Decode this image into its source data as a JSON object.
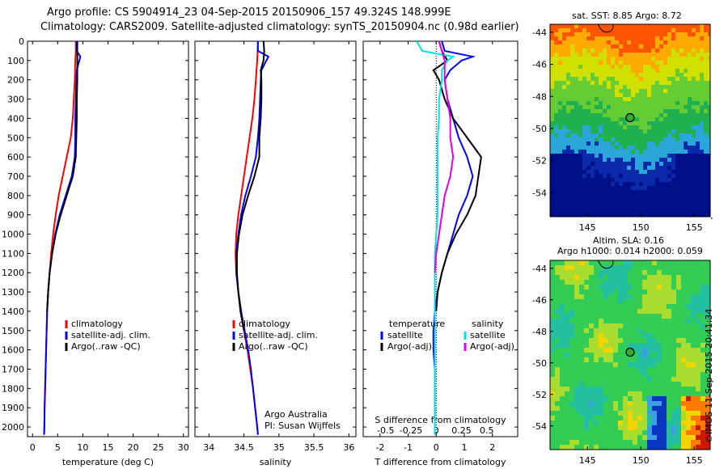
{
  "header": {
    "line1": "Argo profile: CS 5904914_23 04-Sep-2015 20150906_157 49.324S 148.999E",
    "line2": "Climatology: CARS2009. Satellite-adjusted climatology: synTS_20150904.nc (0.98d earlier)"
  },
  "credit": "©IMOS 11-Sep-2015 20:41:34",
  "colors": {
    "climatology": "#ff0000",
    "satellite": "#0000ff",
    "argo": "#000000",
    "satellite_salinity": "#00e5e5",
    "argo_salinity": "#e500e5"
  },
  "chart_data": [
    {
      "id": "temperature",
      "type": "line",
      "xlabel": "temperature (deg C)",
      "ylabel": "",
      "xlim": [
        -1,
        31
      ],
      "ylim": [
        2050,
        0
      ],
      "xticks": [
        0,
        5,
        10,
        15,
        20,
        25,
        30
      ],
      "yticks": [
        0,
        100,
        200,
        300,
        400,
        500,
        600,
        700,
        800,
        900,
        1000,
        1100,
        1200,
        1300,
        1400,
        1500,
        1600,
        1700,
        1800,
        1900,
        2000
      ],
      "legend": [
        "climatology",
        "satellite-adj. clim.",
        "Argo(..raw -QC)"
      ],
      "legend_position": "lower-right",
      "series": [
        {
          "name": "climatology",
          "color": "#ff0000",
          "depth": [
            0,
            50,
            100,
            200,
            300,
            400,
            500,
            600,
            700,
            800,
            900,
            1000,
            1100,
            1200,
            1300,
            1400,
            1500,
            1600,
            1700,
            1800,
            1900,
            2000,
            2040
          ],
          "values": [
            8.6,
            8.6,
            8.5,
            8.4,
            8.2,
            8.0,
            7.6,
            6.8,
            6.0,
            5.2,
            4.6,
            4.1,
            3.7,
            3.4,
            3.1,
            2.9,
            2.8,
            2.7,
            2.6,
            2.5,
            2.4,
            2.35,
            2.3
          ]
        },
        {
          "name": "satellite-adj. clim.",
          "color": "#0000ff",
          "depth": [
            0,
            50,
            80,
            100,
            150,
            200,
            300,
            400,
            500,
            600,
            700,
            800,
            900,
            1000,
            1100,
            1200,
            1300,
            1400,
            1500,
            1600,
            1700,
            1800,
            1900,
            2000,
            2040
          ],
          "values": [
            8.8,
            8.8,
            9.5,
            9.3,
            8.8,
            8.7,
            8.6,
            8.5,
            8.5,
            8.4,
            7.8,
            6.6,
            5.4,
            4.5,
            3.9,
            3.4,
            3.1,
            2.9,
            2.8,
            2.7,
            2.6,
            2.5,
            2.4,
            2.35,
            2.3
          ]
        },
        {
          "name": "Argo(..raw -QC)",
          "color": "#000000",
          "depth": [
            0,
            50,
            100,
            200,
            300,
            400,
            500,
            600,
            700,
            800,
            900,
            1000,
            1100,
            1200,
            1300,
            1400
          ],
          "values": [
            8.9,
            8.9,
            8.9,
            8.9,
            8.8,
            8.8,
            8.7,
            8.6,
            8.0,
            6.8,
            5.6,
            4.6,
            3.9,
            3.4,
            3.1,
            2.9
          ]
        }
      ]
    },
    {
      "id": "salinity",
      "type": "line",
      "xlabel": "salinity",
      "ylabel": "",
      "xlim": [
        33.8,
        36.1
      ],
      "ylim": [
        2050,
        0
      ],
      "xticks": [
        34,
        34.5,
        35,
        35.5,
        36
      ],
      "legend": [
        "climatology",
        "satellite-adj. clim.",
        "Argo(..raw -QC)"
      ],
      "legend_position": "lower-right",
      "annotation": [
        "Argo Australia",
        "PI: Susan Wijffels"
      ],
      "series": [
        {
          "name": "climatology",
          "color": "#ff0000",
          "depth": [
            0,
            100,
            200,
            300,
            400,
            500,
            600,
            700,
            800,
            900,
            1000,
            1100,
            1200,
            1300,
            1400,
            1500,
            1600,
            1700,
            1800,
            1900,
            2000,
            2040
          ],
          "values": [
            34.7,
            34.69,
            34.67,
            34.65,
            34.62,
            34.58,
            34.54,
            34.5,
            34.46,
            34.42,
            34.39,
            34.38,
            34.39,
            34.42,
            34.46,
            34.5,
            34.55,
            34.59,
            34.63,
            34.66,
            34.69,
            34.7
          ]
        },
        {
          "name": "satellite-adj. clim.",
          "color": "#0000ff",
          "depth": [
            0,
            50,
            80,
            100,
            150,
            200,
            300,
            400,
            500,
            600,
            700,
            800,
            900,
            1000,
            1100,
            1200,
            1300,
            1400,
            1500,
            1600,
            1700,
            1800,
            1900,
            2000,
            2040
          ],
          "values": [
            34.7,
            34.7,
            34.85,
            34.82,
            34.75,
            34.74,
            34.73,
            34.72,
            34.7,
            34.67,
            34.6,
            34.52,
            34.46,
            34.42,
            34.39,
            34.39,
            34.42,
            34.46,
            34.51,
            34.56,
            34.6,
            34.63,
            34.66,
            34.69,
            34.7
          ]
        },
        {
          "name": "Argo(..raw -QC)",
          "color": "#000000",
          "depth": [
            0,
            50,
            100,
            150,
            200,
            300,
            400,
            500,
            600,
            700,
            800,
            900,
            1000,
            1100,
            1200,
            1300,
            1400,
            1500
          ],
          "values": [
            34.78,
            34.79,
            34.78,
            34.74,
            34.75,
            34.75,
            34.74,
            34.72,
            34.72,
            34.65,
            34.56,
            34.48,
            34.43,
            34.4,
            34.4,
            34.42,
            34.45,
            34.5
          ]
        }
      ]
    },
    {
      "id": "difference",
      "type": "line",
      "xlabel": "T difference from climatology",
      "xlabel2": "S difference from climatology",
      "xlim": [
        -2.6,
        2.9
      ],
      "ylim": [
        2050,
        0
      ],
      "xticks": [
        -2,
        -1,
        0,
        1,
        2
      ],
      "xticks2_labels": [
        "-0.5",
        "-0.25",
        "0",
        "0.25",
        "0.5"
      ],
      "xticks2_positions": [
        -1.8,
        -0.9,
        0,
        0.9,
        1.8
      ],
      "legend_left": [
        "temperature",
        "satellite",
        "Argo(-adj)"
      ],
      "legend_right": [
        "salinity",
        "satellite",
        "Argo(-adj)"
      ],
      "legend_position": "lower-center",
      "series": [
        {
          "name": "satellite",
          "color": "#0000ff",
          "depth": [
            0,
            50,
            80,
            100,
            150,
            200,
            300,
            400,
            500,
            600,
            700,
            800,
            900,
            1000,
            1100,
            1200,
            1300,
            1400,
            1500,
            1600,
            1700,
            1800,
            1900,
            2000,
            2040
          ],
          "values": [
            0.2,
            0.3,
            1.3,
            0.9,
            0.5,
            0.3,
            0.4,
            0.6,
            0.8,
            1.1,
            1.3,
            1.1,
            0.8,
            0.6,
            0.4,
            0.2,
            0.05,
            -0.05,
            -0.1,
            -0.1,
            -0.05,
            -0.05,
            -0.05,
            -0.05,
            -0.05
          ]
        },
        {
          "name": "Argo(-adj)",
          "color": "#000000",
          "depth": [
            0,
            50,
            100,
            150,
            200,
            300,
            400,
            500,
            600,
            700,
            800,
            900,
            1000,
            1100,
            1200,
            1300,
            1400
          ],
          "values": [
            0.1,
            0.2,
            0.4,
            -0.1,
            0.1,
            0.3,
            0.6,
            1.1,
            1.6,
            1.5,
            1.4,
            1.1,
            0.7,
            0.4,
            0.2,
            0.05,
            0.0
          ]
        },
        {
          "name": "satellite (salinity)",
          "color": "#00e5e5",
          "depth": [
            0,
            50,
            80,
            100,
            150,
            200,
            300,
            400,
            500,
            600,
            700,
            800,
            900,
            1000,
            1100,
            1200,
            1300,
            1400,
            1500,
            1600,
            1700,
            1800,
            1900,
            2000,
            2040
          ],
          "values": [
            -0.7,
            -0.5,
            0.6,
            0.4,
            0.2,
            0.2,
            0.1,
            0.1,
            0.05,
            0.05,
            0.05,
            0.05,
            0.05,
            0.0,
            -0.05,
            -0.05,
            -0.05,
            -0.05,
            -0.05,
            -0.05,
            -0.05,
            -0.05,
            -0.05,
            -0.05,
            -0.05
          ]
        },
        {
          "name": "Argo(-adj) (salinity)",
          "color": "#e500e5",
          "depth": [
            0,
            50,
            100,
            200,
            300,
            400,
            500,
            600,
            700,
            800,
            900,
            1000,
            1100,
            1200
          ],
          "values": [
            0.1,
            0.2,
            0.3,
            0.3,
            0.4,
            0.5,
            0.5,
            0.6,
            0.5,
            0.3,
            0.2,
            0.1,
            0.0,
            -0.05
          ]
        }
      ]
    },
    {
      "id": "sst-map",
      "type": "heatmap",
      "title": "sat. SST: 8.85  Argo: 8.72",
      "xlim": [
        141.5,
        156.5
      ],
      "ylim": [
        -55.5,
        -43.5
      ],
      "xticks": [
        145,
        150,
        155
      ],
      "yticks": [
        -44,
        -46,
        -48,
        -50,
        -52,
        -54
      ],
      "marker": {
        "lon": 148.999,
        "lat": -49.324
      }
    },
    {
      "id": "sla-map",
      "type": "heatmap",
      "title": "Altim. SLA: 0.16",
      "subtitle": "Argo h1000: 0.014  h2000: 0.059",
      "xlim": [
        141.5,
        156.5
      ],
      "ylim": [
        -55.5,
        -43.5
      ],
      "xticks": [
        145,
        150,
        155
      ],
      "yticks": [
        -44,
        -46,
        -48,
        -50,
        -52,
        -54
      ],
      "marker": {
        "lon": 148.999,
        "lat": -49.324
      }
    }
  ]
}
